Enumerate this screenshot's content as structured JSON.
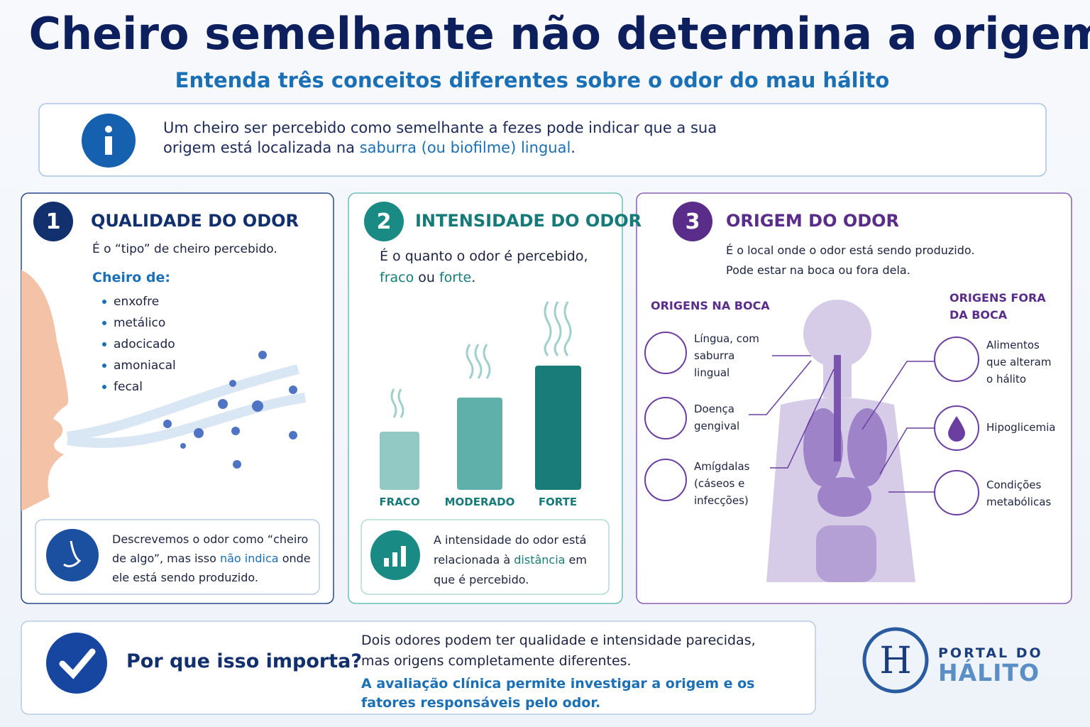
{
  "header": {
    "title": "Cheiro semelhante não determina a origem",
    "subtitle": "Entenda três conceitos diferentes sobre o odor do mau hálito"
  },
  "info": {
    "text": "Um cheiro ser percebido como semelhante a fezes pode indicar que a sua origem está localizada na",
    "highlight": "saburra (ou biofilme) lingual",
    "end": "."
  },
  "panels": [
    {
      "number": "1",
      "title": "QUALIDADE DO ODOR",
      "description": "É o “tipo” de cheiro percebido.",
      "list_title": "Cheiro de:",
      "items": [
        "enxofre",
        "metálico",
        "adocicado",
        "amoniacal",
        "fecal"
      ],
      "note": {
        "text": "Descrevemos o odor como “cheiro de algo”, mas isso",
        "highlight": "não indica",
        "end": "onde ele está sendo produzido."
      }
    },
    {
      "number": "2",
      "title": "INTENSIDADE DO ODOR",
      "description": "É o quanto o odor é percebido,",
      "weak": "fraco",
      "or": "ou",
      "strong": "forte",
      "end": ".",
      "levels": [
        "FRACO",
        "MODERADO",
        "FORTE"
      ],
      "note": {
        "text": "A intensidade do odor está relacionada à",
        "highlight": "distância",
        "end": "em que é percebido."
      }
    },
    {
      "number": "3",
      "title": "ORIGEM DO ODOR",
      "description": [
        "É o local onde o odor está sendo produzido.",
        "Pode estar na boca ou fora dela."
      ],
      "mouth_title": "ORIGENS NA BOCA",
      "mouth_items": [
        "Língua, com saburra lingual",
        "Doença gengival",
        "Amígdalas (cáseos e infecções)"
      ],
      "outside_title": "ORIGENS FORA DA BOCA",
      "outside_items": [
        "Alimentos que alteram o hálito",
        "Hipoglicemia",
        "Condições metabólicas"
      ]
    }
  ],
  "footer": {
    "title": "Por que isso importa?",
    "text": "Dois odores podem ter qualidade e intensidade parecidas, mas origens completamente diferentes.",
    "highlight": "A avaliação clínica permite investigar a origem e os fatores responsáveis pelo odor."
  },
  "logo": {
    "top": "PORTAL DO",
    "bottom": "HÁLITO"
  }
}
